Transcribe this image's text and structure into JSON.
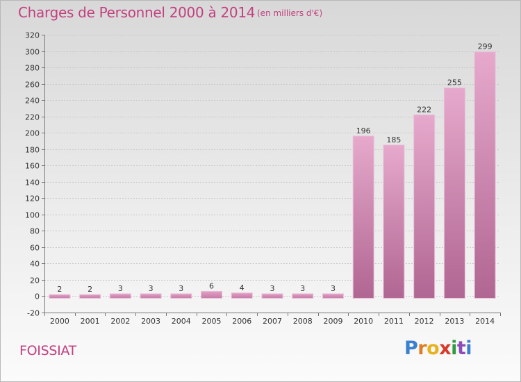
{
  "chart_data": {
    "type": "bar",
    "title": "Charges de Personnel 2000 à 2014",
    "subtitle": "(en milliers d'€)",
    "categories": [
      "2000",
      "2001",
      "2002",
      "2003",
      "2004",
      "2005",
      "2006",
      "2007",
      "2008",
      "2009",
      "2010",
      "2011",
      "2012",
      "2013",
      "2014"
    ],
    "values": [
      2,
      2,
      3,
      3,
      3,
      6,
      4,
      3,
      3,
      3,
      196,
      185,
      222,
      255,
      299
    ],
    "ylim": [
      -20,
      320
    ],
    "yticks": [
      -20,
      0,
      20,
      40,
      60,
      80,
      100,
      120,
      140,
      160,
      180,
      200,
      220,
      240,
      260,
      280,
      300,
      320
    ],
    "grid": true,
    "legend": "none",
    "bar_color": "#c46a9a"
  },
  "commune": "FOISSIAT",
  "logo": {
    "letters": [
      "P",
      "r",
      "o",
      "x",
      "i",
      "t",
      "i"
    ],
    "colors": [
      "#3a7fd0",
      "#e27c22",
      "#e8b21f",
      "#d83a2a",
      "#2f9a3f",
      "#8e4cb8",
      "#3a7fd0"
    ]
  }
}
